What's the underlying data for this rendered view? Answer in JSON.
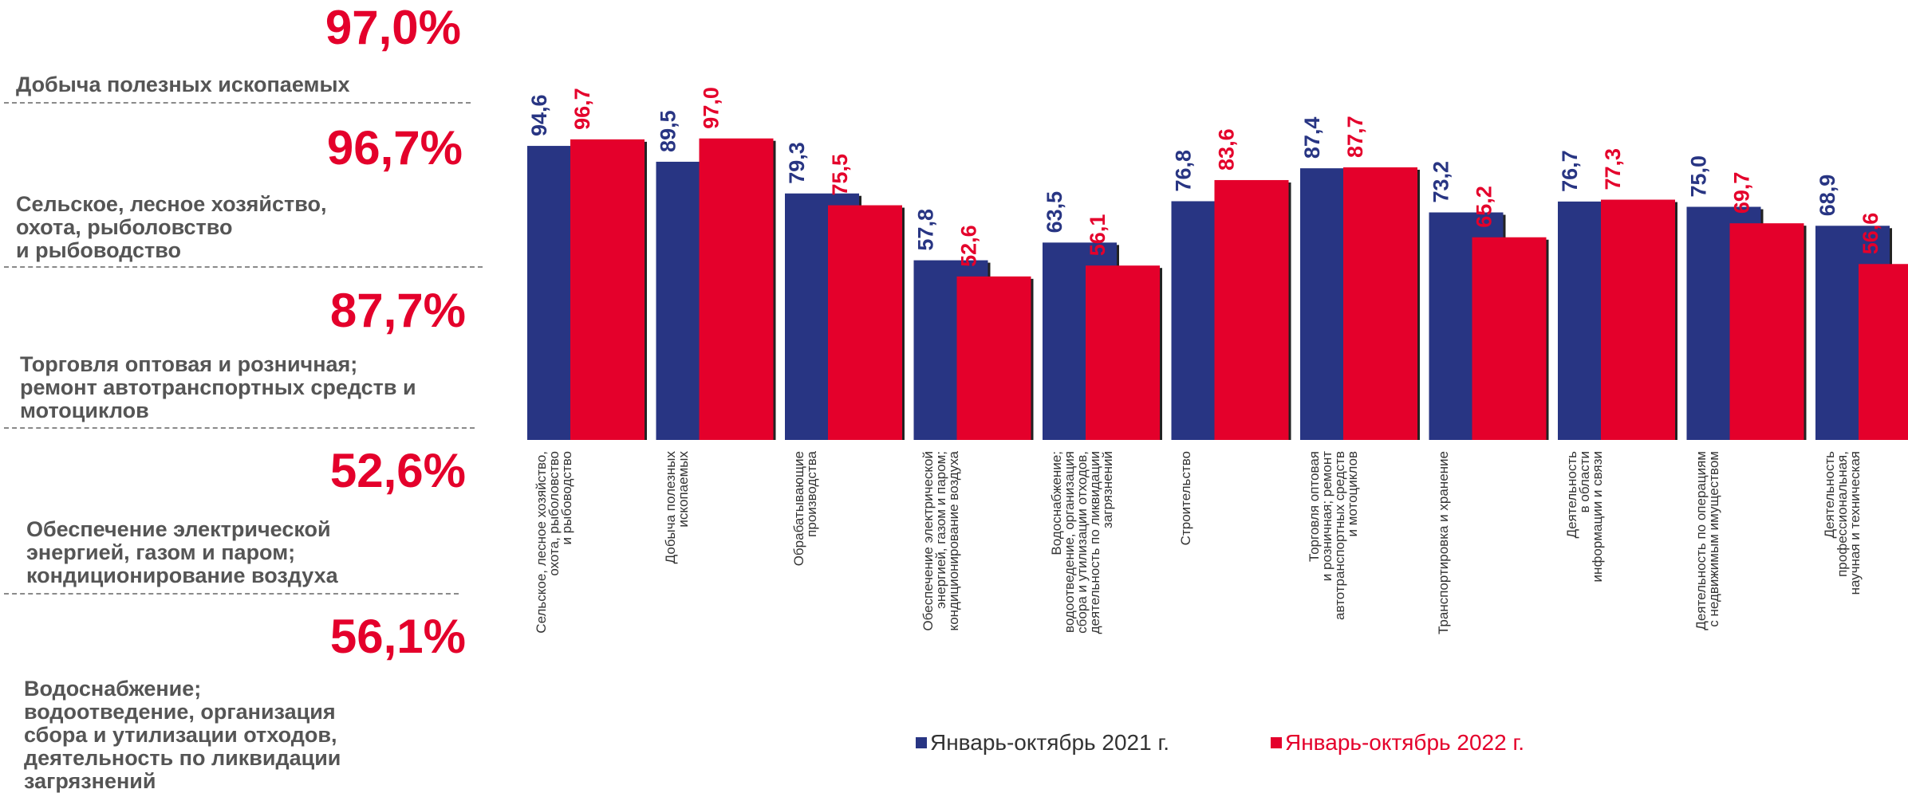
{
  "left_panel": {
    "items": [
      {
        "percent": "97,0%",
        "label": "Добыча полезных ископаемых"
      },
      {
        "percent": "96,7%",
        "label": "Сельское, лесное хозяйство,\nохота, рыболовство\nи рыбоводство"
      },
      {
        "percent": "87,7%",
        "label": "Торговля оптовая и розничная;\nремонт автотранспортных средств и\nмотоциклов"
      },
      {
        "percent": "52,6%",
        "label": "Обеспечение электрической\nэнергией, газом и паром;\nкондиционирование воздуха"
      },
      {
        "percent": "56,1%",
        "label": "Водоснабжение;\nводоотведение, организация\nсбора и утилизации отходов,\nдеятельность по ликвидации\nзагрязнений"
      }
    ]
  },
  "chart_data": {
    "type": "bar",
    "categories": [
      "Сельское, лесное хозяйство,\nохота, рыболовство\nи рыбоводство",
      "Добыча полезных\nископаемых",
      "Обрабатывающие\nпроизводства",
      "Обеспечение электрической\nэнергией, газом и паром;\nкондиционирование воздуха",
      "Водоснабжение;\nводоотведение, организация\nсбора и утилизации отходов,\nдеятельность по ликвидации\nзагрязнений",
      "Строительство",
      "Торговля оптовая\nи розничная; ремонт\nавтотранспортных средств\nи мотоциклов",
      "Транспортировка и хранение",
      "Деятельность\nв области\nинформации и связи",
      "Деятельность по операциям\nс недвижимым имуществом",
      "Деятельность\nпрофессиональная,\nнаучная и техническая"
    ],
    "series": [
      {
        "name": "Январь-октябрь 2021 г.",
        "color": "#283583",
        "values": [
          94.6,
          89.5,
          79.3,
          57.8,
          63.5,
          76.8,
          87.4,
          73.2,
          76.7,
          75.0,
          68.9
        ],
        "labels": [
          "94,6",
          "89,5",
          "79,3",
          "57,8",
          "63,5",
          "76,8",
          "87,4",
          "73,2",
          "76,7",
          "75,0",
          "68,9"
        ]
      },
      {
        "name": "Январь-октябрь 2022 г.",
        "color": "#e4002b",
        "values": [
          96.7,
          97.0,
          75.5,
          52.6,
          56.1,
          83.6,
          87.7,
          65.2,
          77.3,
          69.7,
          56.6
        ],
        "labels": [
          "96,7",
          "97,0",
          "75,5",
          "52,6",
          "56,1",
          "83,6",
          "87,7",
          "65,2",
          "77,3",
          "69,7",
          "56,6"
        ]
      }
    ],
    "ylim": [
      0,
      100
    ],
    "grid": false,
    "legend_position": "bottom"
  }
}
